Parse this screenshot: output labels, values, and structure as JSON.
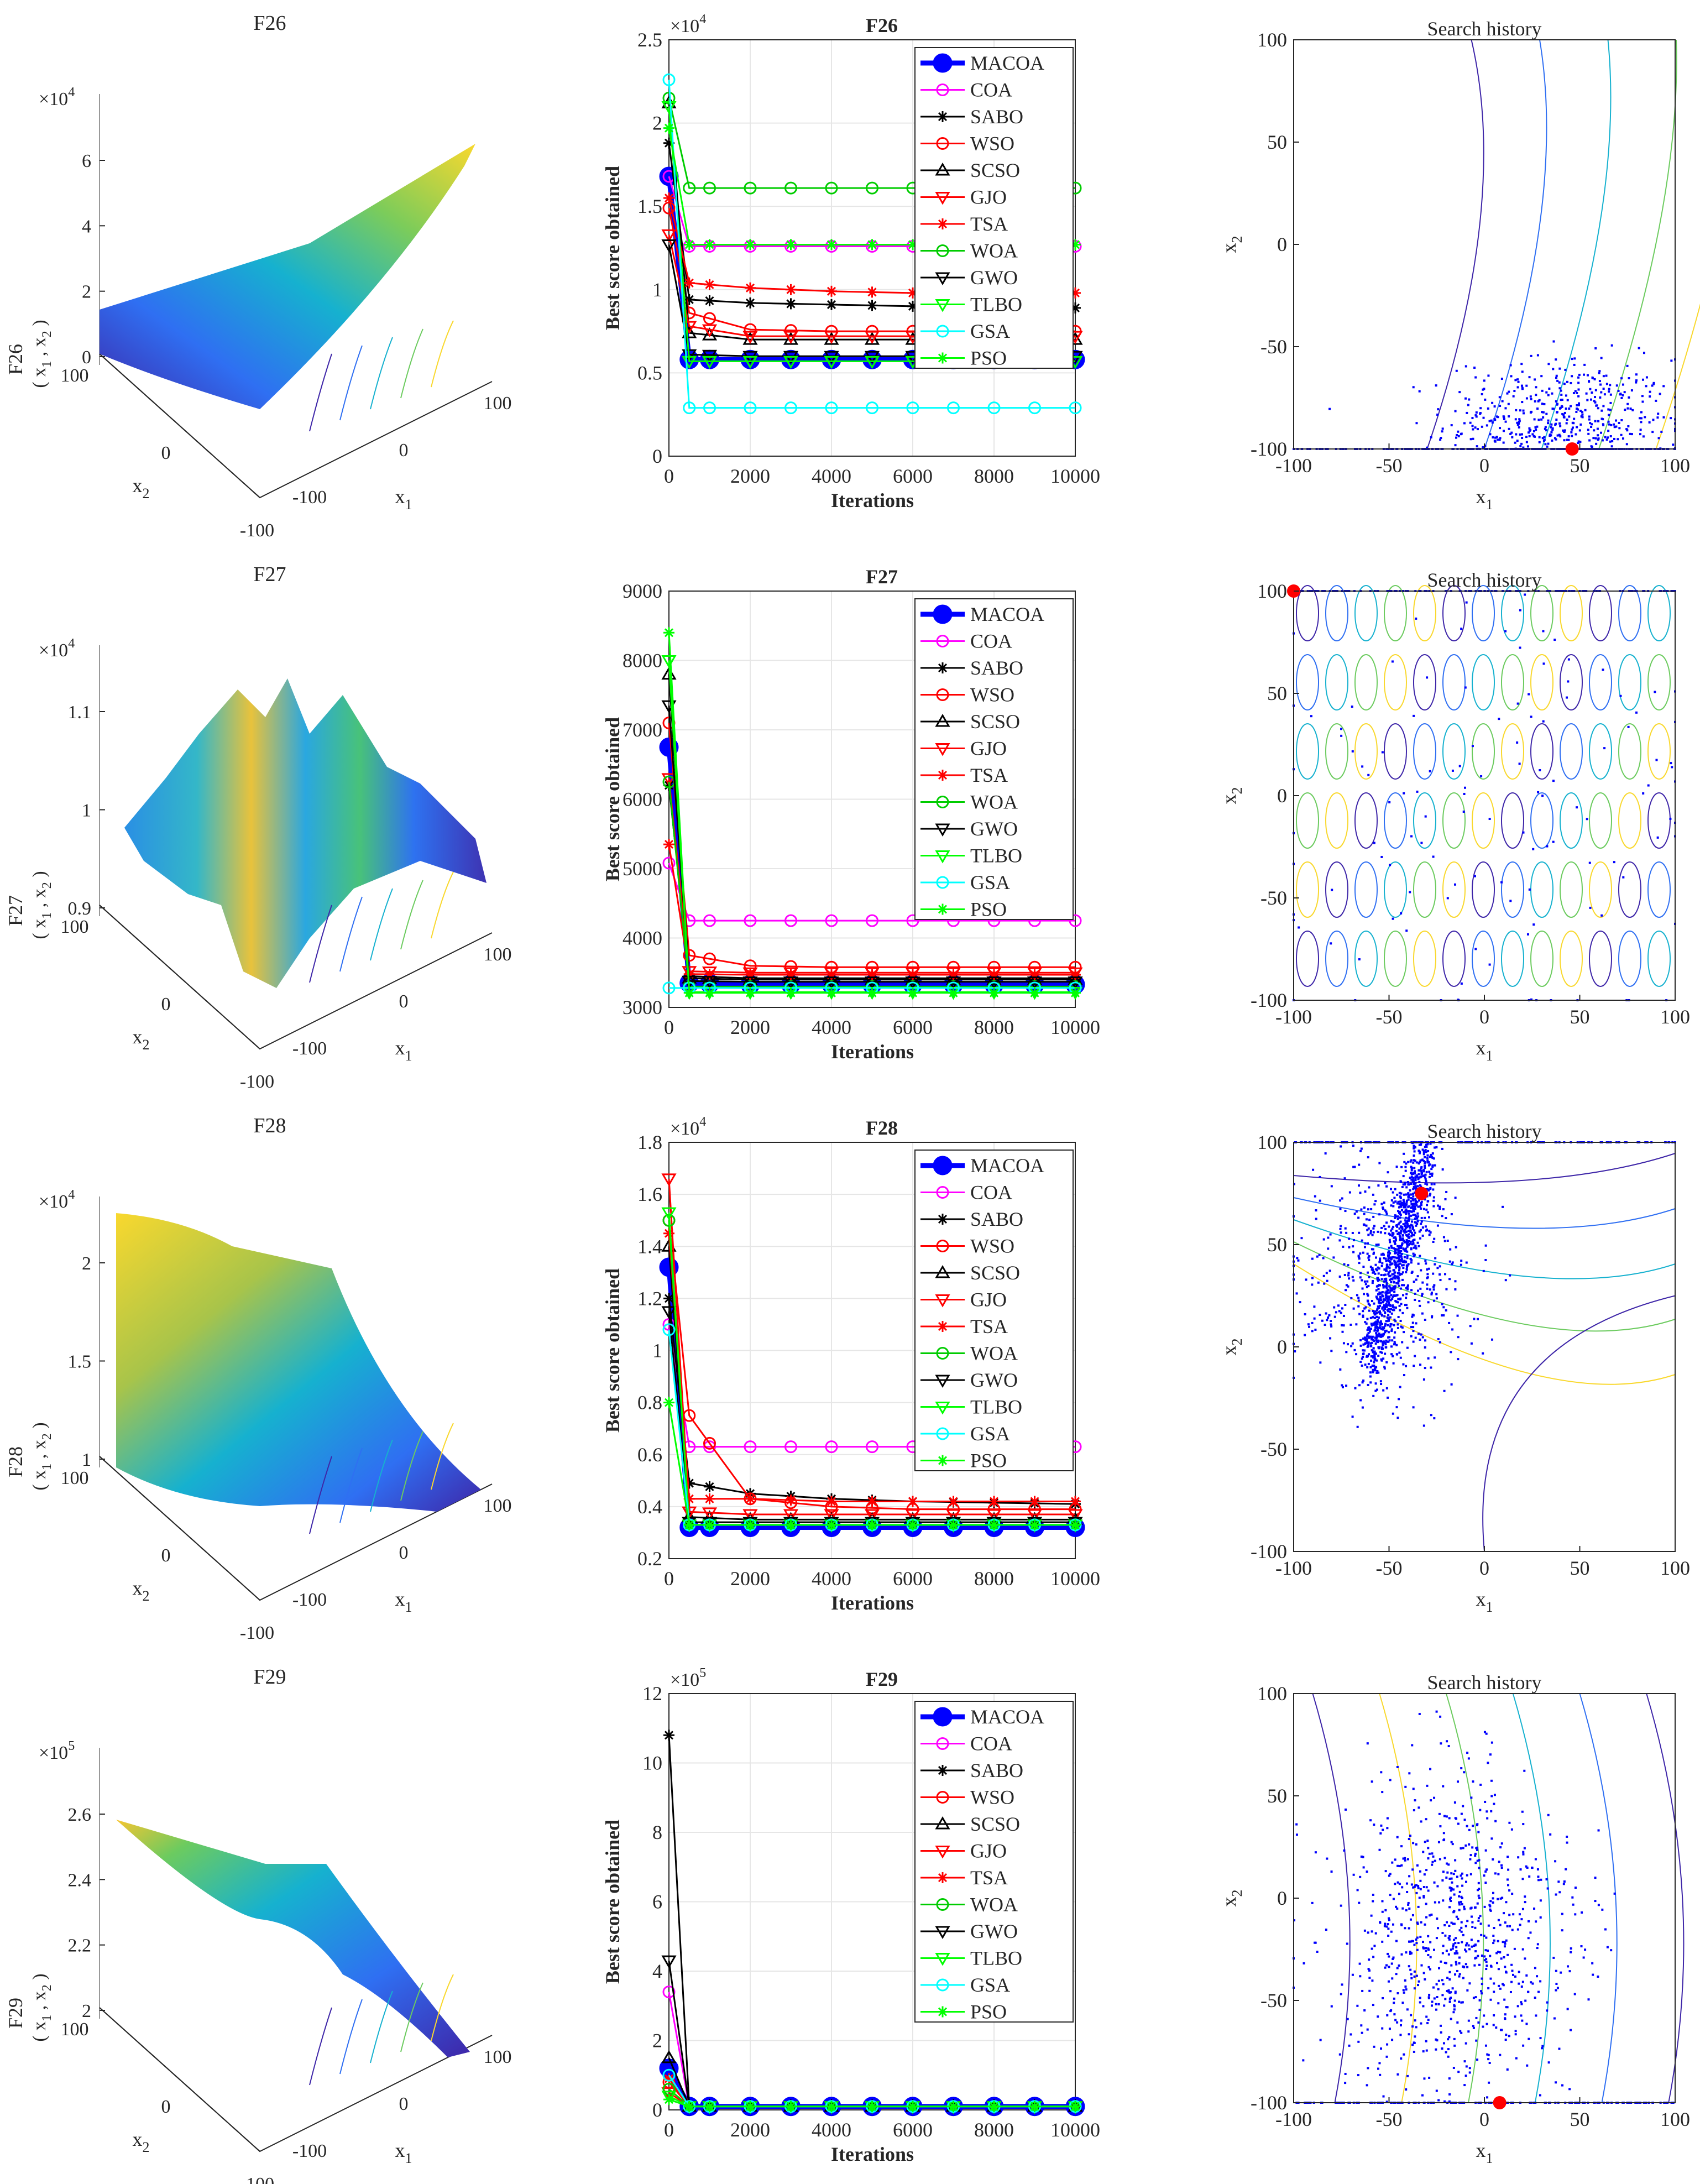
{
  "colors": {
    "MACOA": "#0000ff",
    "COA": "#ff00ff",
    "SABO": "#000000",
    "WSO": "#ff0000",
    "SCSO": "#000000",
    "GJO": "#ff0000",
    "TSA": "#ff0000",
    "WOA": "#00cc00",
    "GWO": "#000000",
    "TLBO": "#00ff00",
    "GSA": "#00ffff",
    "PSO": "#00ff00",
    "grid": "#e6e6e6",
    "axis": "#262626",
    "best_point": "#ff0000",
    "samples": "#0000ff"
  },
  "chart_data": [
    {
      "type": "surface",
      "title": "F26",
      "zlabel": "F26",
      "zlabel2": "( x1 , x2 )",
      "zlabel2_parts": [
        "( x",
        "1",
        " , x",
        "2",
        " )"
      ],
      "xlabel": "x",
      "xlabel_sub": "1",
      "ylabel": "x",
      "ylabel_sub": "2",
      "exponent": "×10",
      "exponent_power": "4",
      "z_ticks": [
        "6",
        "4",
        "2",
        "0"
      ],
      "x_ticks": [
        "-100",
        "0",
        "100"
      ],
      "y_ticks": [
        "100",
        "0",
        "-100"
      ],
      "colormap": "parula"
    },
    {
      "type": "line",
      "title": "F26",
      "xlabel": "Iterations",
      "ylabel": "Best score obtained",
      "exponent": "×10",
      "exponent_power": "4",
      "xlim": [
        0,
        10000
      ],
      "ylim": [
        0,
        2.5
      ],
      "x_ticks": [
        "0",
        "2000",
        "4000",
        "6000",
        "8000",
        "10000"
      ],
      "y_ticks": [
        "0",
        "0.5",
        "1",
        "1.5",
        "2",
        "2.5"
      ],
      "grid": true,
      "legend_position": "top-right",
      "series": [
        {
          "name": "MACOA",
          "values": [
            1.68,
            0.58,
            0.58,
            0.58,
            0.58,
            0.58
          ]
        },
        {
          "name": "COA",
          "values": [
            1.68,
            1.26,
            1.26,
            1.26,
            1.26,
            1.26
          ]
        },
        {
          "name": "SABO",
          "values": [
            1.88,
            0.94,
            0.92,
            0.91,
            0.9,
            0.89
          ]
        },
        {
          "name": "WSO",
          "values": [
            1.49,
            0.86,
            0.76,
            0.75,
            0.75,
            0.75
          ]
        },
        {
          "name": "SCSO",
          "values": [
            2.12,
            0.74,
            0.7,
            0.7,
            0.7,
            0.7
          ]
        },
        {
          "name": "GJO",
          "values": [
            1.33,
            0.78,
            0.72,
            0.72,
            0.72,
            0.72
          ]
        },
        {
          "name": "TSA",
          "values": [
            1.55,
            1.04,
            1.01,
            0.99,
            0.98,
            0.98
          ]
        },
        {
          "name": "WOA",
          "values": [
            2.15,
            1.61,
            1.61,
            1.61,
            1.61,
            1.61
          ]
        },
        {
          "name": "GWO",
          "values": [
            1.27,
            0.61,
            0.6,
            0.6,
            0.6,
            0.6
          ]
        },
        {
          "name": "TLBO",
          "values": [
            2.1,
            0.57,
            0.57,
            0.57,
            0.57,
            0.57
          ]
        },
        {
          "name": "GSA",
          "values": [
            2.26,
            0.29,
            0.29,
            0.29,
            0.29,
            0.29
          ]
        },
        {
          "name": "PSO",
          "values": [
            1.97,
            1.27,
            1.27,
            1.27,
            1.27,
            1.27
          ]
        }
      ]
    },
    {
      "type": "scatter",
      "title": "Search history",
      "xlabel": "x",
      "xlabel_sub": "1",
      "ylabel": "x",
      "ylabel_sub": "2",
      "xlim": [
        -100,
        100
      ],
      "ylim": [
        -100,
        100
      ],
      "x_ticks": [
        "-100",
        "-50",
        "0",
        "50",
        "100"
      ],
      "y_ticks": [
        "100",
        "50",
        "0",
        "-50",
        "-100"
      ],
      "best": [
        46,
        -100
      ],
      "cluster": {
        "cx": 40,
        "cy": -88,
        "sx": 30,
        "sy": 16,
        "n": 600,
        "edge": "bottom"
      }
    },
    {
      "type": "surface",
      "title": "F27",
      "zlabel": "F27",
      "zlabel2": "( x1 , x2 )",
      "zlabel2_parts": [
        "( x",
        "1",
        " , x",
        "2",
        " )"
      ],
      "xlabel": "x",
      "xlabel_sub": "1",
      "ylabel": "x",
      "ylabel_sub": "2",
      "exponent": "×10",
      "exponent_power": "4",
      "z_ticks": [
        "1.1",
        "1",
        "0.9"
      ],
      "x_ticks": [
        "-100",
        "0",
        "100"
      ],
      "y_ticks": [
        "100",
        "0",
        "-100"
      ],
      "colormap": "parula"
    },
    {
      "type": "line",
      "title": "F27",
      "xlabel": "Iterations",
      "ylabel": "Best score obtained",
      "exponent": "",
      "exponent_power": "",
      "xlim": [
        0,
        10000
      ],
      "ylim": [
        3000,
        9000
      ],
      "x_ticks": [
        "0",
        "2000",
        "4000",
        "6000",
        "8000",
        "10000"
      ],
      "y_ticks": [
        "3000",
        "4000",
        "5000",
        "6000",
        "7000",
        "8000",
        "9000"
      ],
      "grid": true,
      "legend_position": "top-right",
      "series": [
        {
          "name": "MACOA",
          "values": [
            6750,
            3350,
            3330,
            3330,
            3330,
            3330
          ]
        },
        {
          "name": "COA",
          "values": [
            5080,
            4250,
            4250,
            4250,
            4250,
            4250
          ]
        },
        {
          "name": "SABO",
          "values": [
            6200,
            3450,
            3420,
            3420,
            3420,
            3420
          ]
        },
        {
          "name": "WSO",
          "values": [
            7100,
            3750,
            3600,
            3580,
            3580,
            3580
          ]
        },
        {
          "name": "SCSO",
          "values": [
            7800,
            3420,
            3400,
            3400,
            3400,
            3400
          ]
        },
        {
          "name": "GJO",
          "values": [
            6300,
            3520,
            3500,
            3500,
            3500,
            3500
          ]
        },
        {
          "name": "TSA",
          "values": [
            5350,
            3480,
            3470,
            3470,
            3470,
            3470
          ]
        },
        {
          "name": "WOA",
          "values": [
            6250,
            3300,
            3300,
            3300,
            3300,
            3300
          ]
        },
        {
          "name": "GWO",
          "values": [
            7350,
            3380,
            3370,
            3370,
            3370,
            3370
          ]
        },
        {
          "name": "TLBO",
          "values": [
            8000,
            3220,
            3220,
            3220,
            3220,
            3220
          ]
        },
        {
          "name": "GSA",
          "values": [
            3280,
            3280,
            3280,
            3280,
            3280,
            3280
          ]
        },
        {
          "name": "PSO",
          "values": [
            8400,
            3210,
            3210,
            3210,
            3210,
            3210
          ]
        }
      ]
    },
    {
      "type": "scatter",
      "title": "Search history",
      "xlabel": "x",
      "xlabel_sub": "1",
      "ylabel": "x",
      "ylabel_sub": "2",
      "xlim": [
        -100,
        100
      ],
      "ylim": [
        -100,
        100
      ],
      "x_ticks": [
        "-100",
        "-50",
        "0",
        "50",
        "100"
      ],
      "y_ticks": [
        "100",
        "50",
        "0",
        "-50",
        "-100"
      ],
      "best": [
        -100,
        100
      ],
      "cluster": {
        "cx": 0,
        "cy": 0,
        "sx": 70,
        "sy": 70,
        "n": 140,
        "edge": "top"
      }
    },
    {
      "type": "surface",
      "title": "F28",
      "zlabel": "F28",
      "zlabel2": "( x1 , x2 )",
      "zlabel2_parts": [
        "( x",
        "1",
        " , x",
        "2",
        " )"
      ],
      "xlabel": "x",
      "xlabel_sub": "1",
      "ylabel": "x",
      "ylabel_sub": "2",
      "exponent": "×10",
      "exponent_power": "4",
      "z_ticks": [
        "2",
        "1.5",
        "1"
      ],
      "x_ticks": [
        "-100",
        "0",
        "100"
      ],
      "y_ticks": [
        "100",
        "0",
        "-100"
      ],
      "colormap": "parula"
    },
    {
      "type": "line",
      "title": "F28",
      "xlabel": "Iterations",
      "ylabel": "Best score obtained",
      "exponent": "×10",
      "exponent_power": "4",
      "xlim": [
        0,
        10000
      ],
      "ylim": [
        0.2,
        1.8
      ],
      "x_ticks": [
        "0",
        "2000",
        "4000",
        "6000",
        "8000",
        "10000"
      ],
      "y_ticks": [
        "0.2",
        "0.4",
        "0.6",
        "0.8",
        "1",
        "1.2",
        "1.4",
        "1.6",
        "1.8"
      ],
      "grid": true,
      "legend_position": "top-right",
      "series": [
        {
          "name": "MACOA",
          "values": [
            1.32,
            0.32,
            0.32,
            0.32,
            0.32,
            0.32
          ]
        },
        {
          "name": "COA",
          "values": [
            1.1,
            0.63,
            0.63,
            0.63,
            0.63,
            0.63
          ]
        },
        {
          "name": "SABO",
          "values": [
            1.2,
            0.49,
            0.45,
            0.43,
            0.42,
            0.41
          ]
        },
        {
          "name": "WSO",
          "values": [
            1.5,
            0.75,
            0.43,
            0.4,
            0.39,
            0.39
          ]
        },
        {
          "name": "SCSO",
          "values": [
            1.4,
            0.36,
            0.35,
            0.35,
            0.35,
            0.35
          ]
        },
        {
          "name": "GJO",
          "values": [
            1.66,
            0.38,
            0.37,
            0.37,
            0.37,
            0.37
          ]
        },
        {
          "name": "TSA",
          "values": [
            1.45,
            0.43,
            0.43,
            0.42,
            0.42,
            0.42
          ]
        },
        {
          "name": "WOA",
          "values": [
            1.5,
            0.33,
            0.33,
            0.33,
            0.33,
            0.33
          ]
        },
        {
          "name": "GWO",
          "values": [
            1.15,
            0.34,
            0.34,
            0.34,
            0.34,
            0.34
          ]
        },
        {
          "name": "TLBO",
          "values": [
            1.53,
            0.33,
            0.33,
            0.33,
            0.33,
            0.33
          ]
        },
        {
          "name": "GSA",
          "values": [
            1.08,
            0.33,
            0.33,
            0.33,
            0.33,
            0.33
          ]
        },
        {
          "name": "PSO",
          "values": [
            0.8,
            0.33,
            0.33,
            0.33,
            0.33,
            0.33
          ]
        }
      ]
    },
    {
      "type": "scatter",
      "title": "Search history",
      "xlabel": "x",
      "xlabel_sub": "1",
      "ylabel": "x",
      "ylabel_sub": "2",
      "xlim": [
        -100,
        100
      ],
      "ylim": [
        -100,
        100
      ],
      "x_ticks": [
        "-100",
        "-50",
        "0",
        "50",
        "100"
      ],
      "y_ticks": [
        "100",
        "50",
        "0",
        "-50",
        "-100"
      ],
      "best": [
        -33,
        75
      ],
      "cluster": {
        "cx": -52,
        "cy": 35,
        "sx": 22,
        "sy": 28,
        "n": 1500,
        "edge": "top"
      }
    },
    {
      "type": "surface",
      "title": "F29",
      "zlabel": "F29",
      "zlabel2": "( x1 , x2 )",
      "zlabel2_parts": [
        "( x",
        "1",
        " , x",
        "2",
        " )"
      ],
      "xlabel": "x",
      "xlabel_sub": "1",
      "ylabel": "x",
      "ylabel_sub": "2",
      "exponent": "×10",
      "exponent_power": "5",
      "z_ticks": [
        "2.6",
        "2.4",
        "2.2",
        "2"
      ],
      "x_ticks": [
        "-100",
        "0",
        "100"
      ],
      "y_ticks": [
        "100",
        "0",
        "-100"
      ],
      "colormap": "parula"
    },
    {
      "type": "line",
      "title": "F29",
      "xlabel": "Iterations",
      "ylabel": "Best score obtained",
      "exponent": "×10",
      "exponent_power": "5",
      "xlim": [
        0,
        10000
      ],
      "ylim": [
        0,
        12
      ],
      "x_ticks": [
        "0",
        "2000",
        "4000",
        "6000",
        "8000",
        "10000"
      ],
      "y_ticks": [
        "0",
        "2",
        "4",
        "6",
        "8",
        "10",
        "12"
      ],
      "grid": true,
      "legend_position": "top-right",
      "series": [
        {
          "name": "MACOA",
          "values": [
            1.2,
            0.1,
            0.1,
            0.1,
            0.1,
            0.1
          ]
        },
        {
          "name": "COA",
          "values": [
            3.4,
            0.1,
            0.1,
            0.1,
            0.1,
            0.1
          ]
        },
        {
          "name": "SABO",
          "values": [
            10.8,
            0.1,
            0.1,
            0.1,
            0.1,
            0.1
          ]
        },
        {
          "name": "WSO",
          "values": [
            0.8,
            0.1,
            0.1,
            0.1,
            0.1,
            0.1
          ]
        },
        {
          "name": "SCSO",
          "values": [
            1.5,
            0.1,
            0.1,
            0.1,
            0.1,
            0.1
          ]
        },
        {
          "name": "GJO",
          "values": [
            0.5,
            0.1,
            0.1,
            0.1,
            0.1,
            0.1
          ]
        },
        {
          "name": "TSA",
          "values": [
            0.9,
            0.1,
            0.1,
            0.1,
            0.1,
            0.1
          ]
        },
        {
          "name": "WOA",
          "values": [
            0.6,
            0.1,
            0.1,
            0.1,
            0.1,
            0.1
          ]
        },
        {
          "name": "GWO",
          "values": [
            4.3,
            0.1,
            0.1,
            0.1,
            0.1,
            0.1
          ]
        },
        {
          "name": "TLBO",
          "values": [
            0.4,
            0.1,
            0.1,
            0.1,
            0.1,
            0.1
          ]
        },
        {
          "name": "GSA",
          "values": [
            1.0,
            0.1,
            0.1,
            0.1,
            0.1,
            0.1
          ]
        },
        {
          "name": "PSO",
          "values": [
            0.3,
            0.1,
            0.1,
            0.1,
            0.1,
            0.1
          ]
        }
      ]
    },
    {
      "type": "scatter",
      "title": "Search history",
      "xlabel": "x",
      "xlabel_sub": "1",
      "ylabel": "x",
      "ylabel_sub": "2",
      "xlim": [
        -100,
        100
      ],
      "ylim": [
        -100,
        100
      ],
      "x_ticks": [
        "-100",
        "-50",
        "0",
        "50",
        "100"
      ],
      "y_ticks": [
        "100",
        "50",
        "0",
        "-50",
        "-100"
      ],
      "best": [
        8,
        -100
      ],
      "cluster": {
        "cx": -15,
        "cy": -20,
        "sx": 30,
        "sy": 40,
        "n": 900,
        "edge": "bottom"
      }
    }
  ]
}
